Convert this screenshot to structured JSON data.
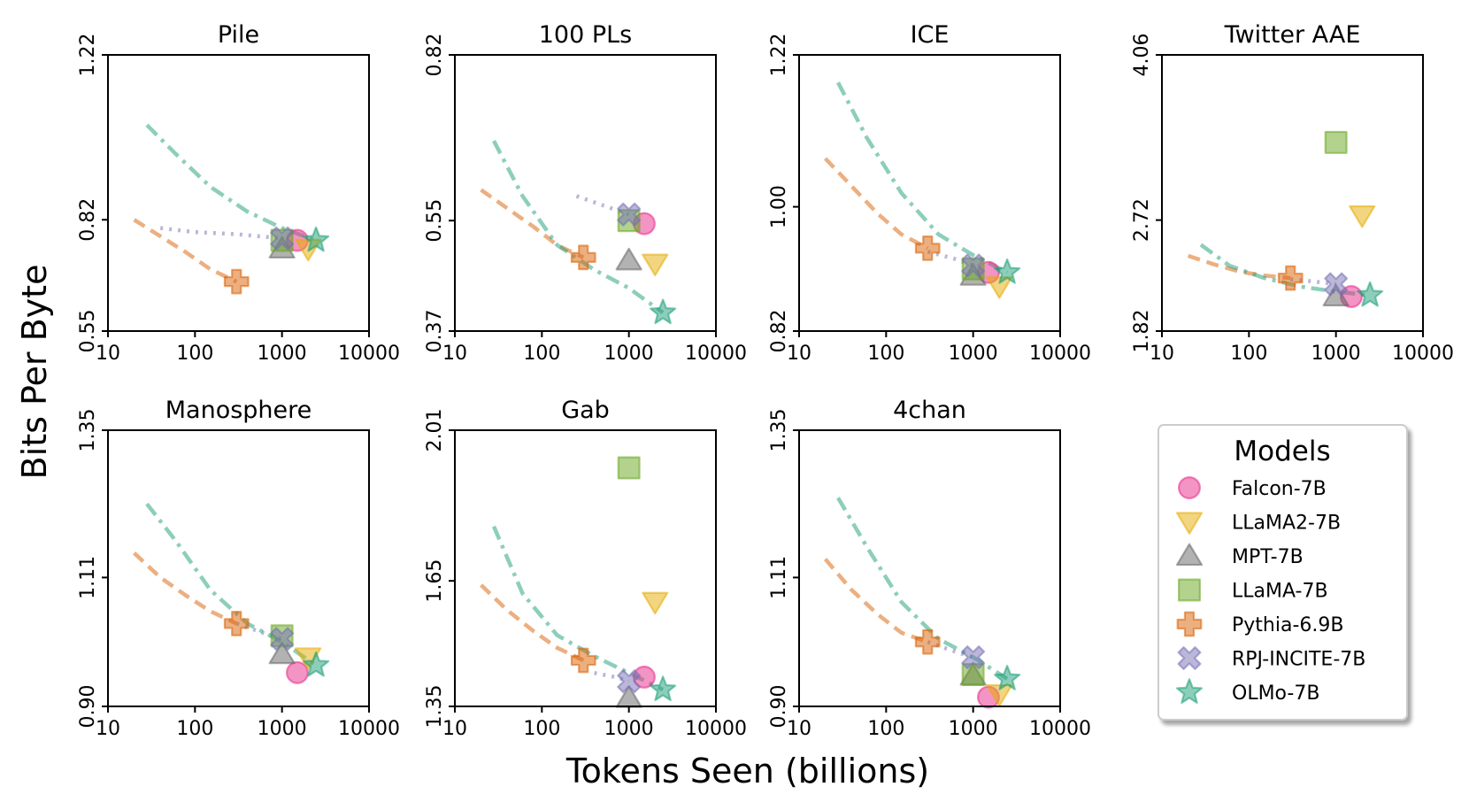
{
  "figure": {
    "ylabel": "Bits Per Byte",
    "xlabel": "Tokens Seen (billions)",
    "legend_title": "Models",
    "legend_position": "bottom-right"
  },
  "models": [
    {
      "name": "Falcon-7B",
      "color": "#e7298a",
      "marker": "circle"
    },
    {
      "name": "LLaMA2-7B",
      "color": "#e6ab02",
      "marker": "triangle-down"
    },
    {
      "name": "MPT-7B",
      "color": "#666666",
      "marker": "triangle-up"
    },
    {
      "name": "LLaMA-7B",
      "color": "#66a61e",
      "marker": "square"
    },
    {
      "name": "Pythia-6.9B",
      "color": "#d95f02",
      "marker": "plus"
    },
    {
      "name": "RPJ-INCITE-7B",
      "color": "#7570b3",
      "marker": "x"
    },
    {
      "name": "OLMo-7B",
      "color": "#1b9e77",
      "marker": "star"
    }
  ],
  "chart_data": [
    {
      "type": "scatter",
      "title": "Pile",
      "xscale": "log",
      "xlim": [
        10,
        10000
      ],
      "xticks": [
        "10",
        "100",
        "1000",
        "10000"
      ],
      "ylim": [
        0.55,
        1.22
      ],
      "yticks": [
        "0.55",
        "0.82",
        "1.22"
      ],
      "points": [
        {
          "model": "Falcon-7B",
          "x": 1500,
          "y": 0.77
        },
        {
          "model": "LLaMA2-7B",
          "x": 2000,
          "y": 0.75
        },
        {
          "model": "MPT-7B",
          "x": 1000,
          "y": 0.75
        },
        {
          "model": "LLaMA-7B",
          "x": 1000,
          "y": 0.77
        },
        {
          "model": "Pythia-6.9B",
          "x": 300,
          "y": 0.67
        },
        {
          "model": "RPJ-INCITE-7B",
          "x": 1000,
          "y": 0.775
        },
        {
          "model": "OLMo-7B",
          "x": 2460,
          "y": 0.77
        }
      ],
      "curves": [
        {
          "model": "Pythia-6.9B",
          "style": "dashed",
          "x": [
            20,
            40,
            80,
            150,
            300
          ],
          "y": [
            0.82,
            0.78,
            0.74,
            0.7,
            0.67
          ]
        },
        {
          "model": "RPJ-INCITE-7B",
          "style": "dotted",
          "x": [
            40,
            100,
            300,
            1000
          ],
          "y": [
            0.8,
            0.79,
            0.785,
            0.775
          ]
        },
        {
          "model": "OLMo-7B",
          "style": "dashdot",
          "x": [
            28,
            60,
            150,
            400,
            1000,
            2460
          ],
          "y": [
            1.05,
            0.98,
            0.9,
            0.84,
            0.8,
            0.77
          ]
        }
      ]
    },
    {
      "type": "scatter",
      "title": "100 PLs",
      "xscale": "log",
      "xlim": [
        10,
        10000
      ],
      "xticks": [
        "10",
        "100",
        "1000",
        "10000"
      ],
      "ylim": [
        0.37,
        0.82
      ],
      "yticks": [
        "0.37",
        "0.55",
        "0.82"
      ],
      "points": [
        {
          "model": "Falcon-7B",
          "x": 1500,
          "y": 0.545
        },
        {
          "model": "LLaMA2-7B",
          "x": 2000,
          "y": 0.48
        },
        {
          "model": "MPT-7B",
          "x": 1000,
          "y": 0.485
        },
        {
          "model": "LLaMA-7B",
          "x": 1000,
          "y": 0.55
        },
        {
          "model": "Pythia-6.9B",
          "x": 300,
          "y": 0.49
        },
        {
          "model": "RPJ-INCITE-7B",
          "x": 1000,
          "y": 0.56
        },
        {
          "model": "OLMo-7B",
          "x": 2460,
          "y": 0.4
        }
      ],
      "curves": [
        {
          "model": "Pythia-6.9B",
          "style": "dashed",
          "x": [
            20,
            40,
            80,
            150,
            300
          ],
          "y": [
            0.6,
            0.57,
            0.54,
            0.51,
            0.49
          ]
        },
        {
          "model": "RPJ-INCITE-7B",
          "style": "dotted",
          "x": [
            250,
            500,
            1000
          ],
          "y": [
            0.59,
            0.575,
            0.56
          ]
        },
        {
          "model": "OLMo-7B",
          "style": "dashdot",
          "x": [
            28,
            60,
            150,
            400,
            1000,
            2460
          ],
          "y": [
            0.68,
            0.59,
            0.51,
            0.47,
            0.44,
            0.4
          ]
        }
      ]
    },
    {
      "type": "scatter",
      "title": "ICE",
      "xscale": "log",
      "xlim": [
        10,
        10000
      ],
      "xticks": [
        "10",
        "100",
        "1000",
        "10000"
      ],
      "ylim": [
        0.82,
        1.22
      ],
      "yticks": [
        "0.82",
        "1.00",
        "1.22"
      ],
      "points": [
        {
          "model": "Falcon-7B",
          "x": 1500,
          "y": 0.905
        },
        {
          "model": "LLaMA2-7B",
          "x": 2000,
          "y": 0.885
        },
        {
          "model": "MPT-7B",
          "x": 1000,
          "y": 0.9
        },
        {
          "model": "LLaMA-7B",
          "x": 1000,
          "y": 0.91
        },
        {
          "model": "Pythia-6.9B",
          "x": 300,
          "y": 0.94
        },
        {
          "model": "RPJ-INCITE-7B",
          "x": 1000,
          "y": 0.915
        },
        {
          "model": "OLMo-7B",
          "x": 2460,
          "y": 0.905
        }
      ],
      "curves": [
        {
          "model": "Pythia-6.9B",
          "style": "dashed",
          "x": [
            20,
            40,
            80,
            150,
            300
          ],
          "y": [
            1.07,
            1.03,
            0.99,
            0.96,
            0.94
          ]
        },
        {
          "model": "RPJ-INCITE-7B",
          "style": "dotted",
          "x": [
            300,
            600,
            1000
          ],
          "y": [
            0.935,
            0.925,
            0.915
          ]
        },
        {
          "model": "OLMo-7B",
          "style": "dashdot",
          "x": [
            28,
            60,
            150,
            400,
            1000,
            2460
          ],
          "y": [
            1.18,
            1.1,
            1.02,
            0.96,
            0.93,
            0.905
          ]
        }
      ]
    },
    {
      "type": "scatter",
      "title": "Twitter AAE",
      "xscale": "log",
      "xlim": [
        10,
        10000
      ],
      "xticks": [
        "10",
        "100",
        "1000",
        "10000"
      ],
      "ylim": [
        1.82,
        4.06
      ],
      "yticks": [
        "1.82",
        "2.72",
        "4.06"
      ],
      "points": [
        {
          "model": "Falcon-7B",
          "x": 1500,
          "y": 2.1
        },
        {
          "model": "LLaMA2-7B",
          "x": 2000,
          "y": 2.76
        },
        {
          "model": "MPT-7B",
          "x": 1000,
          "y": 2.1
        },
        {
          "model": "LLaMA-7B",
          "x": 1000,
          "y": 3.35
        },
        {
          "model": "Pythia-6.9B",
          "x": 300,
          "y": 2.25
        },
        {
          "model": "RPJ-INCITE-7B",
          "x": 1000,
          "y": 2.2
        },
        {
          "model": "OLMo-7B",
          "x": 2460,
          "y": 2.11
        }
      ],
      "curves": [
        {
          "model": "Pythia-6.9B",
          "style": "dashed",
          "x": [
            20,
            40,
            80,
            150,
            300
          ],
          "y": [
            2.43,
            2.36,
            2.3,
            2.27,
            2.25
          ]
        },
        {
          "model": "RPJ-INCITE-7B",
          "style": "dotted",
          "x": [
            300,
            600,
            1000
          ],
          "y": [
            2.24,
            2.22,
            2.2
          ]
        },
        {
          "model": "OLMo-7B",
          "style": "dashdot",
          "x": [
            28,
            60,
            150,
            400,
            1000,
            2460
          ],
          "y": [
            2.52,
            2.35,
            2.25,
            2.18,
            2.14,
            2.11
          ]
        }
      ]
    },
    {
      "type": "scatter",
      "title": "Manosphere",
      "xscale": "log",
      "xlim": [
        10,
        10000
      ],
      "xticks": [
        "10",
        "100",
        "1000",
        "10000"
      ],
      "ylim": [
        0.9,
        1.35
      ],
      "yticks": [
        "0.90",
        "1.11",
        "1.35"
      ],
      "points": [
        {
          "model": "Falcon-7B",
          "x": 1500,
          "y": 0.955
        },
        {
          "model": "LLaMA2-7B",
          "x": 2000,
          "y": 0.98
        },
        {
          "model": "MPT-7B",
          "x": 1000,
          "y": 0.985
        },
        {
          "model": "LLaMA-7B",
          "x": 1000,
          "y": 1.015
        },
        {
          "model": "Pythia-6.9B",
          "x": 300,
          "y": 1.035
        },
        {
          "model": "RPJ-INCITE-7B",
          "x": 1000,
          "y": 1.01
        },
        {
          "model": "OLMo-7B",
          "x": 2460,
          "y": 0.967
        }
      ],
      "curves": [
        {
          "model": "Pythia-6.9B",
          "style": "dashed",
          "x": [
            20,
            40,
            80,
            150,
            300
          ],
          "y": [
            1.15,
            1.11,
            1.08,
            1.055,
            1.035
          ]
        },
        {
          "model": "RPJ-INCITE-7B",
          "style": "dotted",
          "x": [
            300,
            600,
            1000
          ],
          "y": [
            1.035,
            1.02,
            1.01
          ]
        },
        {
          "model": "OLMo-7B",
          "style": "dashdot",
          "x": [
            28,
            60,
            150,
            400,
            1000,
            2460
          ],
          "y": [
            1.23,
            1.17,
            1.09,
            1.035,
            1.005,
            0.967
          ]
        }
      ]
    },
    {
      "type": "scatter",
      "title": "Gab",
      "xscale": "log",
      "xlim": [
        10,
        10000
      ],
      "xticks": [
        "10",
        "100",
        "1000",
        "10000"
      ],
      "ylim": [
        1.35,
        2.01
      ],
      "yticks": [
        "1.35",
        "1.65",
        "2.01"
      ],
      "points": [
        {
          "model": "Falcon-7B",
          "x": 1500,
          "y": 1.42
        },
        {
          "model": "LLaMA2-7B",
          "x": 2000,
          "y": 1.6
        },
        {
          "model": "MPT-7B",
          "x": 1000,
          "y": 1.37
        },
        {
          "model": "LLaMA-7B",
          "x": 1000,
          "y": 1.92
        },
        {
          "model": "Pythia-6.9B",
          "x": 300,
          "y": 1.46
        },
        {
          "model": "RPJ-INCITE-7B",
          "x": 1000,
          "y": 1.41
        },
        {
          "model": "OLMo-7B",
          "x": 2460,
          "y": 1.39
        }
      ],
      "curves": [
        {
          "model": "Pythia-6.9B",
          "style": "dashed",
          "x": [
            20,
            40,
            80,
            150,
            300
          ],
          "y": [
            1.64,
            1.58,
            1.53,
            1.49,
            1.46
          ]
        },
        {
          "model": "RPJ-INCITE-7B",
          "style": "dotted",
          "x": [
            400,
            700,
            1000
          ],
          "y": [
            1.43,
            1.42,
            1.41
          ]
        },
        {
          "model": "OLMo-7B",
          "style": "dashdot",
          "x": [
            28,
            60,
            150,
            400,
            1000,
            2460
          ],
          "y": [
            1.78,
            1.62,
            1.52,
            1.47,
            1.43,
            1.39
          ]
        }
      ]
    },
    {
      "type": "scatter",
      "title": "4chan",
      "xscale": "log",
      "xlim": [
        10,
        10000
      ],
      "xticks": [
        "10",
        "100",
        "1000",
        "10000"
      ],
      "ylim": [
        0.9,
        1.35
      ],
      "yticks": [
        "0.90",
        "1.11",
        "1.35"
      ],
      "points": [
        {
          "model": "Falcon-7B",
          "x": 1500,
          "y": 0.915
        },
        {
          "model": "LLaMA2-7B",
          "x": 2000,
          "y": 0.92
        },
        {
          "model": "MPT-7B",
          "x": 1000,
          "y": 0.95
        },
        {
          "model": "LLaMA-7B",
          "x": 1000,
          "y": 0.952
        },
        {
          "model": "Pythia-6.9B",
          "x": 300,
          "y": 1.005
        },
        {
          "model": "RPJ-INCITE-7B",
          "x": 1000,
          "y": 0.98
        },
        {
          "model": "OLMo-7B",
          "x": 2460,
          "y": 0.945
        }
      ],
      "curves": [
        {
          "model": "Pythia-6.9B",
          "style": "dashed",
          "x": [
            20,
            40,
            80,
            150,
            300
          ],
          "y": [
            1.14,
            1.09,
            1.05,
            1.02,
            1.005
          ]
        },
        {
          "model": "RPJ-INCITE-7B",
          "style": "dotted",
          "x": [
            300,
            600,
            1000
          ],
          "y": [
            1.005,
            0.99,
            0.98
          ]
        },
        {
          "model": "OLMo-7B",
          "style": "dashdot",
          "x": [
            28,
            60,
            150,
            400,
            1000,
            2460
          ],
          "y": [
            1.24,
            1.16,
            1.07,
            1.01,
            0.98,
            0.945
          ]
        }
      ]
    }
  ]
}
